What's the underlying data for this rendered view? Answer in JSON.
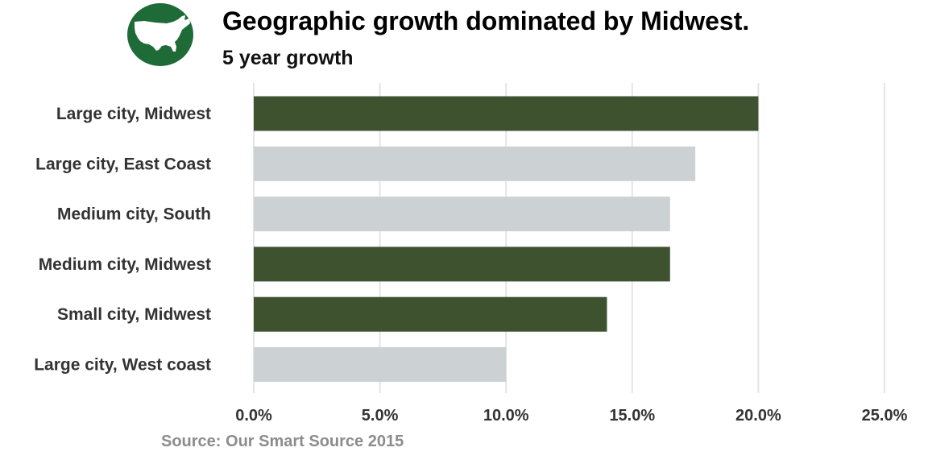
{
  "header": {
    "title": "Geographic growth dominated by Midwest.",
    "subtitle": "5 year growth"
  },
  "logo": {
    "icon": "usa-map-icon",
    "circle_color": "#1e6b38",
    "map_color": "#ffffff"
  },
  "footer": {
    "source": "Source: Our Smart Source 2015"
  },
  "colors": {
    "highlight": "#3e5230",
    "muted": "#ccd1d4",
    "grid": "#e4e4e4",
    "label": "#333333"
  },
  "chart_data": {
    "type": "bar",
    "orientation": "horizontal",
    "categories": [
      "Large city, Midwest",
      "Large city, East Coast",
      "Medium city, South",
      "Medium city, Midwest",
      "Small city, Midwest",
      "Large city, West coast"
    ],
    "values": [
      0.2,
      0.175,
      0.165,
      0.165,
      0.14,
      0.1
    ],
    "highlighted": [
      true,
      false,
      false,
      true,
      true,
      false
    ],
    "xlim": [
      0,
      0.25
    ],
    "xticks": [
      0,
      0.05,
      0.1,
      0.15,
      0.2,
      0.25
    ],
    "xtick_labels": [
      "0.0%",
      "5.0%",
      "10.0%",
      "15.0%",
      "20.0%",
      "25.0%"
    ],
    "grid": "vertical",
    "xlabel": "",
    "ylabel": ""
  }
}
